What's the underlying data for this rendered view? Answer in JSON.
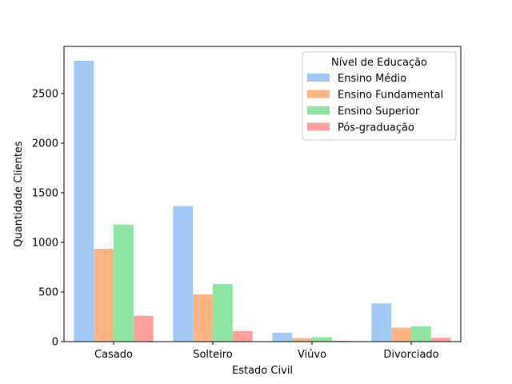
{
  "chart_data": {
    "type": "bar",
    "xlabel": "Estado Civil",
    "ylabel": "Quantidade Clientes",
    "categories": [
      "Casado",
      "Solteiro",
      "Viúvo",
      "Divorciado"
    ],
    "ylim": [
      0,
      2975
    ],
    "yticks": [
      "0",
      "500",
      "1000",
      "1500",
      "2000",
      "2500"
    ],
    "grid": false,
    "legend": {
      "title": "Nível de Educação",
      "position": "top-right"
    },
    "series": [
      {
        "name": "Ensino Médio",
        "color": "#a1c9f4",
        "values": [
          2830,
          1365,
          90,
          385
        ]
      },
      {
        "name": "Ensino Fundamental",
        "color": "#ffb482",
        "values": [
          935,
          475,
          35,
          140
        ]
      },
      {
        "name": "Ensino Superior",
        "color": "#8de5a1",
        "values": [
          1180,
          580,
          45,
          155
        ]
      },
      {
        "name": "Pós-graduação",
        "color": "#ff9f9b",
        "values": [
          260,
          105,
          8,
          38
        ]
      }
    ]
  }
}
